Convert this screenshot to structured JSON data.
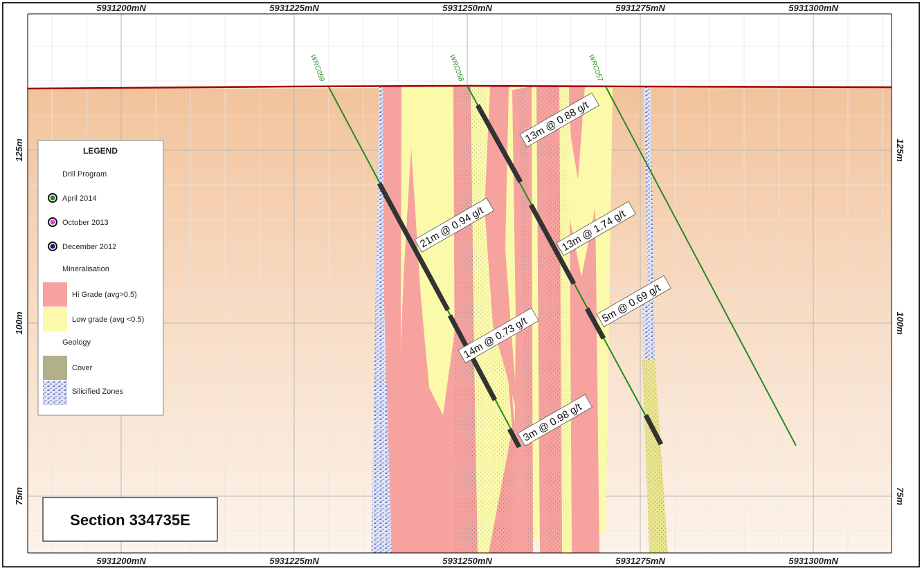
{
  "map": {
    "northing_labels": [
      "5931200mN",
      "5931225mN",
      "5931250mN",
      "5931275mN",
      "5931300mN"
    ],
    "elevation_labels": [
      "125m",
      "100m",
      "75m"
    ],
    "drill_holes": [
      {
        "name": "WRC059",
        "program": "April 2014"
      },
      {
        "name": "WRC058",
        "program": "April 2014"
      },
      {
        "name": "WRC057",
        "program": "April 2014"
      }
    ],
    "intercepts": [
      {
        "hole": "WRC058",
        "label": "13m @ 0.88 g/t"
      },
      {
        "hole": "WRC058",
        "label": "13m @ 1.74 g/t"
      },
      {
        "hole": "WRC058",
        "label": "5m @ 0.69 g/t"
      },
      {
        "hole": "WRC059",
        "label": "21m @ 0.94 g/t"
      },
      {
        "hole": "WRC059",
        "label": "14m @ 0.73 g/t"
      },
      {
        "hole": "WRC059",
        "label": "3m @ 0.98 g/t"
      }
    ],
    "section_title": "Section 334735E"
  },
  "legend": {
    "title": "LEGEND",
    "drill_program_heading": "Drill Program",
    "programs": [
      {
        "label": "April 2014",
        "color": "#1e8c1e"
      },
      {
        "label": "October 2013",
        "color": "#e040e0"
      },
      {
        "label": "December 2012",
        "color": "#1a1a7a"
      }
    ],
    "mineralisation_heading": "Mineralisation",
    "mineralisation": [
      {
        "label": "Hi Grade (avg>0.5)",
        "color": "#f6a3a0"
      },
      {
        "label": "Low grade (avg <0.5)",
        "color": "#fbfaaa"
      }
    ],
    "geology_heading": "Geology",
    "geology": [
      {
        "label": "Cover",
        "color": "#b0b08a"
      },
      {
        "label": "Silicified Zones",
        "color": "#dfe3f5"
      }
    ]
  },
  "colors": {
    "ground_top": "#f3c7a3",
    "ground_bottom": "#fbefe4",
    "surface_line": "#a00000",
    "drill_trace": "#1e8c1e",
    "intercept": "#333333"
  }
}
